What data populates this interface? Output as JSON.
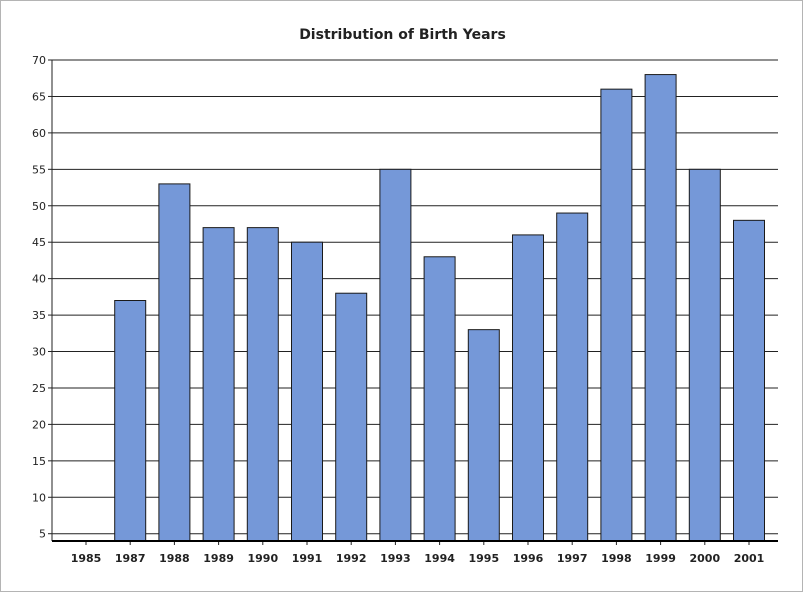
{
  "chart_data": {
    "type": "bar",
    "title": "Distribution of Birth Years",
    "xlabel": "",
    "ylabel": "",
    "categories": [
      "1985",
      "1987",
      "1988",
      "1989",
      "1990",
      "1991",
      "1992",
      "1993",
      "1994",
      "1995",
      "1996",
      "1997",
      "1998",
      "1999",
      "2000",
      "2001"
    ],
    "values": [
      4,
      37,
      53,
      47,
      47,
      45,
      38,
      55,
      43,
      33,
      46,
      49,
      66,
      68,
      55,
      48
    ],
    "ylim": [
      4,
      70
    ],
    "yticks": [
      5,
      10,
      15,
      20,
      25,
      30,
      35,
      40,
      45,
      50,
      55,
      60,
      65,
      70
    ],
    "grid": true,
    "colors": {
      "bar_fill": "#7598d8",
      "bar_stroke": "#1a1a1a",
      "grid": "#222222"
    }
  }
}
